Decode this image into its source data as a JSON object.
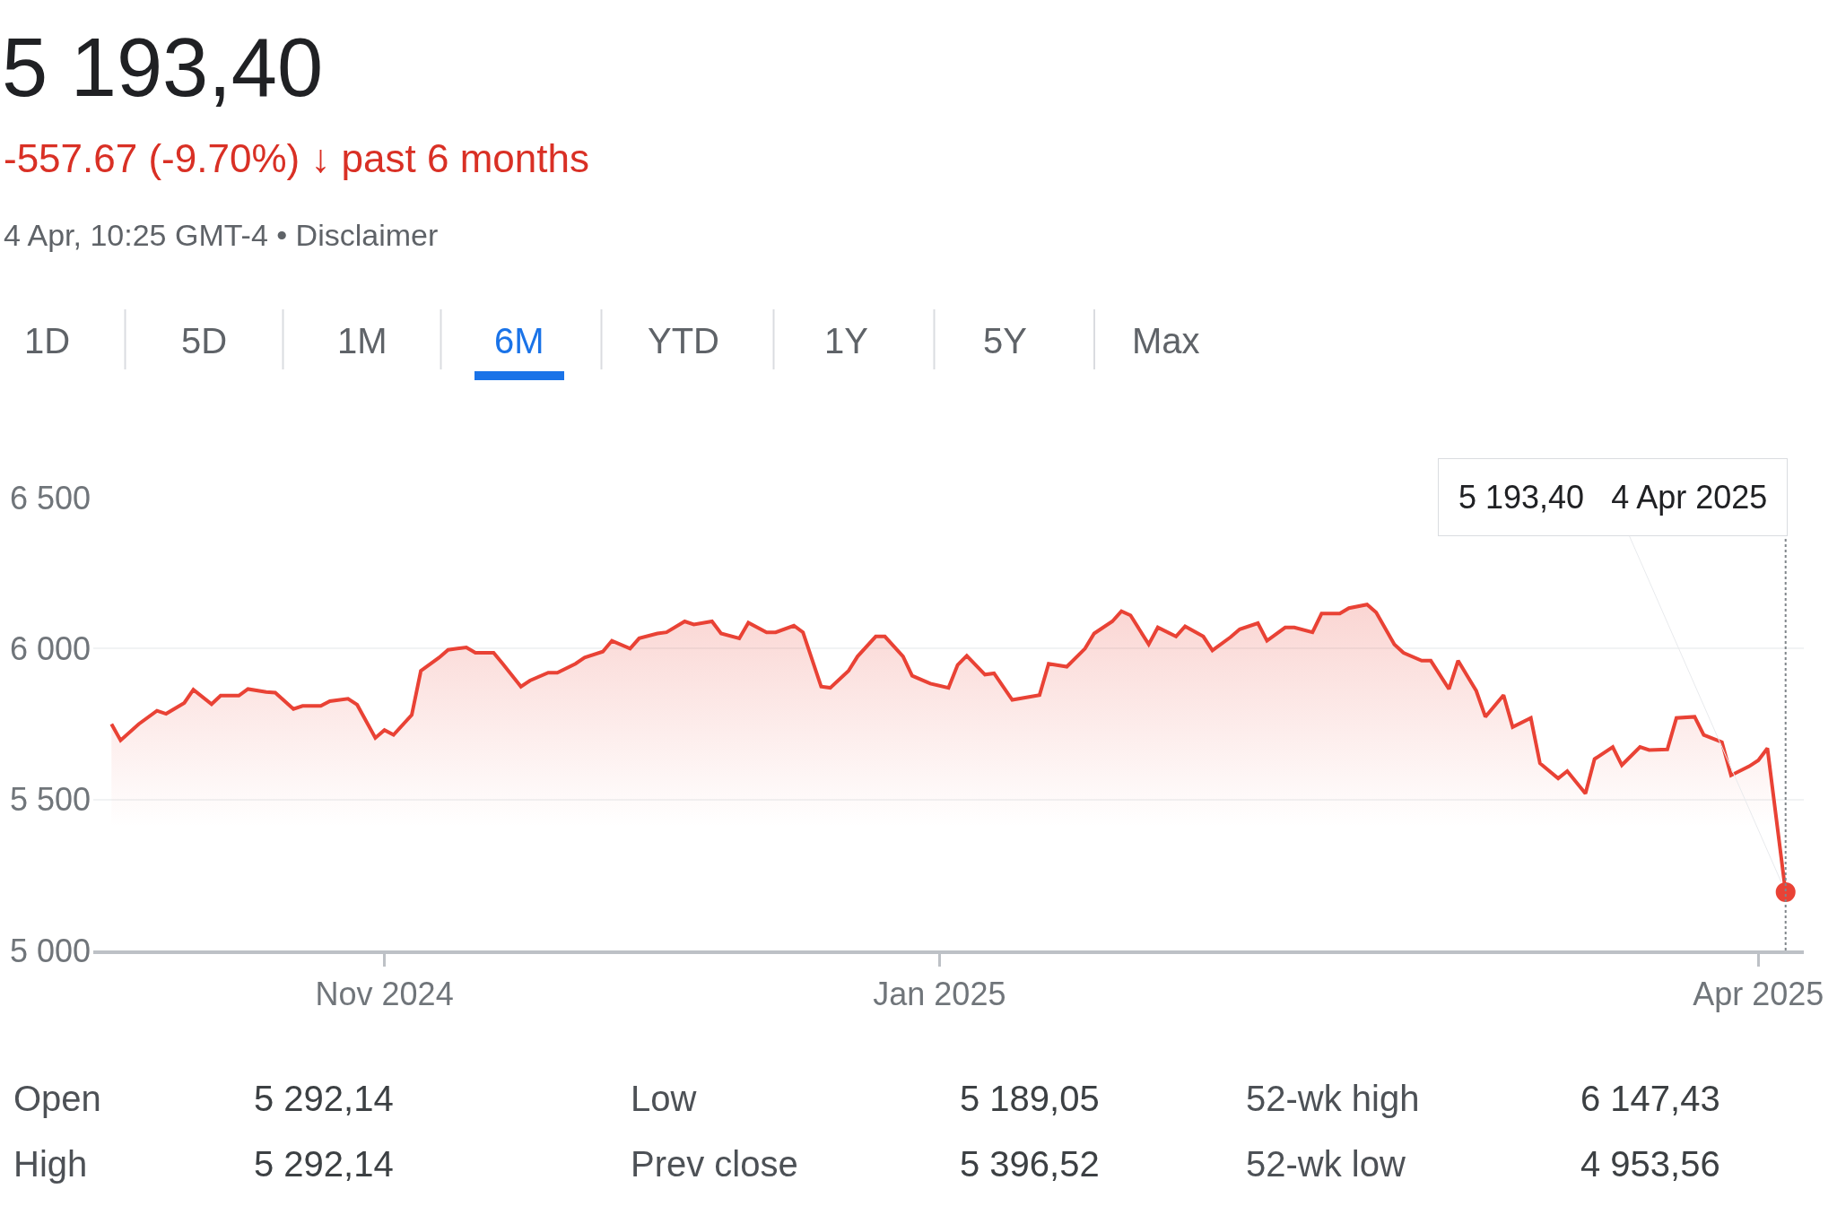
{
  "chart_data": {
    "type": "area",
    "title": "5 193,40",
    "subtitle": "-557.67 (-9.70%) ↓ past 6 months",
    "annotations": [
      "4 Apr, 10:25 GMT-4 • Disclaimer",
      "1D",
      "5D",
      "1M",
      "6M",
      "YTD",
      "1Y",
      "5Y",
      "Max",
      "Open",
      "5 292,14",
      "High",
      "5 292,14",
      "Low",
      "5 189,05",
      "Prev close",
      "5 396,52",
      "52-wk high",
      "6 147,43",
      "52-wk low",
      "4 953,56",
      {
        "text": "5 193,40   4 Apr 2025",
        "x": "2025-04-04",
        "y": 5193.4
      }
    ],
    "x": [
      "2024-10-02",
      "2024-10-03",
      "2024-10-05",
      "2024-10-07",
      "2024-10-08",
      "2024-10-10",
      "2024-10-11",
      "2024-10-13",
      "2024-10-14",
      "2024-10-16",
      "2024-10-17",
      "2024-10-19",
      "2024-10-20",
      "2024-10-22",
      "2024-10-23",
      "2024-10-25",
      "2024-10-26",
      "2024-10-28",
      "2024-10-29",
      "2024-10-31",
      "2024-11-01",
      "2024-11-02",
      "2024-11-04",
      "2024-11-05",
      "2024-11-07",
      "2024-11-08",
      "2024-11-10",
      "2024-11-11",
      "2024-11-13",
      "2024-11-14",
      "2024-11-16",
      "2024-11-17",
      "2024-11-19",
      "2024-11-20",
      "2024-11-22",
      "2024-11-23",
      "2024-11-25",
      "2024-11-26",
      "2024-11-28",
      "2024-11-29",
      "2024-12-01",
      "2024-12-02",
      "2024-12-04",
      "2024-12-05",
      "2024-12-07",
      "2024-12-08",
      "2024-12-10",
      "2024-12-11",
      "2024-12-13",
      "2024-12-14",
      "2024-12-16",
      "2024-12-17",
      "2024-12-19",
      "2024-12-20",
      "2024-12-22",
      "2024-12-23",
      "2024-12-25",
      "2024-12-26",
      "2024-12-28",
      "2024-12-29",
      "2024-12-31",
      "2025-01-02",
      "2025-01-03",
      "2025-01-04",
      "2025-01-06",
      "2025-01-07",
      "2025-01-09",
      "2025-01-12",
      "2025-01-13",
      "2025-01-15",
      "2025-01-17",
      "2025-01-18",
      "2025-01-20",
      "2025-01-21",
      "2025-01-22",
      "2025-01-24",
      "2025-01-25",
      "2025-01-27",
      "2025-01-28",
      "2025-01-30",
      "2025-01-31",
      "2025-02-02",
      "2025-02-03",
      "2025-02-05",
      "2025-02-06",
      "2025-02-08",
      "2025-02-09",
      "2025-02-11",
      "2025-02-12",
      "2025-02-14",
      "2025-02-15",
      "2025-02-17",
      "2025-02-18",
      "2025-02-20",
      "2025-02-21",
      "2025-02-23",
      "2025-02-24",
      "2025-02-26",
      "2025-02-27",
      "2025-03-01",
      "2025-03-02",
      "2025-03-04",
      "2025-03-05",
      "2025-03-07",
      "2025-03-08",
      "2025-03-10",
      "2025-03-11",
      "2025-03-13",
      "2025-03-14",
      "2025-03-16",
      "2025-03-17",
      "2025-03-19",
      "2025-03-20",
      "2025-03-22",
      "2025-03-23",
      "2025-03-25",
      "2025-03-26",
      "2025-03-28",
      "2025-03-29",
      "2025-03-31",
      "2025-04-01",
      "2025-04-02",
      "2025-04-04"
    ],
    "series": [
      {
        "color": "#e94235",
        "values": [
          5750,
          5696,
          5750,
          5794,
          5784,
          5820,
          5864,
          5816,
          5844,
          5844,
          5866,
          5856,
          5854,
          5800,
          5810,
          5810,
          5826,
          5834,
          5814,
          5704,
          5730,
          5714,
          5780,
          5926,
          5970,
          5996,
          6004,
          5986,
          5986,
          5950,
          5874,
          5894,
          5920,
          5920,
          5950,
          5970,
          5990,
          6026,
          6000,
          6034,
          6050,
          6054,
          6090,
          6080,
          6090,
          6050,
          6034,
          6086,
          6054,
          6054,
          6076,
          6054,
          5874,
          5870,
          5926,
          5974,
          6040,
          6040,
          5974,
          5910,
          5884,
          5870,
          5946,
          5976,
          5914,
          5918,
          5830,
          5846,
          5950,
          5940,
          6000,
          6050,
          6090,
          6124,
          6110,
          6014,
          6070,
          6040,
          6074,
          6040,
          5994,
          6038,
          6064,
          6084,
          6026,
          6070,
          6070,
          6054,
          6116,
          6116,
          6134,
          6146,
          6120,
          6014,
          5986,
          5960,
          5960,
          5866,
          5960,
          5860,
          5774,
          5846,
          5740,
          5770,
          5620,
          5570,
          5594,
          5520,
          5634,
          5674,
          5614,
          5674,
          5664,
          5666,
          5770,
          5774,
          5714,
          5690,
          5580,
          5610,
          5630,
          5670,
          5193.4
        ]
      }
    ],
    "xlim": [
      "2024-09-30",
      "2025-04-06"
    ],
    "xticks": [
      {
        "value": "2024-11-01",
        "label": "Nov 2024"
      },
      {
        "value": "2025-01-01",
        "label": "Jan 2025"
      },
      {
        "value": "2025-04-01",
        "label": "Apr 2025"
      }
    ],
    "ylim": [
      5000,
      6500
    ],
    "yticks": [
      {
        "value": 5000,
        "label": "5 000"
      },
      {
        "value": 5500,
        "label": "5 500"
      },
      {
        "value": 6000,
        "label": "6 000"
      },
      {
        "value": 6500,
        "label": "6 500"
      }
    ],
    "ref_lines": [
      {
        "axis": "x",
        "value": "2025-04-04",
        "color": "#80868b",
        "line_style": "dotted"
      }
    ],
    "grid": "y",
    "marker": "none",
    "line_style": "solid"
  }
}
